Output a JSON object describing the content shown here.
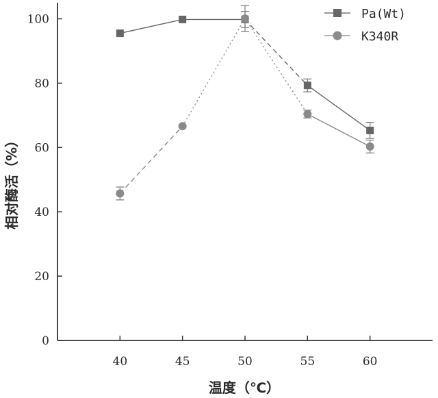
{
  "chart_data": {
    "type": "line",
    "title": "",
    "xlabel": "温度（℃）",
    "ylabel": "相对酶活（%）",
    "x": [
      40,
      45,
      50,
      55,
      60
    ],
    "xlim": [
      35,
      65
    ],
    "ylim": [
      0,
      105
    ],
    "yticks": [
      0,
      20,
      40,
      60,
      80,
      100
    ],
    "grid": false,
    "legend_position": "top-right",
    "series": [
      {
        "name": "Pa(Wt)",
        "marker": "square",
        "color": "#666666",
        "line_style": [
          "solid",
          "solid",
          "dashed",
          "solid"
        ],
        "values": [
          95.5,
          99.8,
          99.8,
          79.3,
          65.3
        ],
        "error": [
          0,
          0,
          2.5,
          2.0,
          2.5
        ]
      },
      {
        "name": "K340R",
        "marker": "circle",
        "color": "#8a8a8a",
        "line_style": [
          "dashed",
          "dotted",
          "dotted",
          "solid"
        ],
        "values": [
          45.7,
          66.6,
          100.1,
          70.4,
          60.3
        ],
        "error": [
          2.0,
          0,
          4.0,
          1.2,
          2.0
        ]
      }
    ]
  }
}
